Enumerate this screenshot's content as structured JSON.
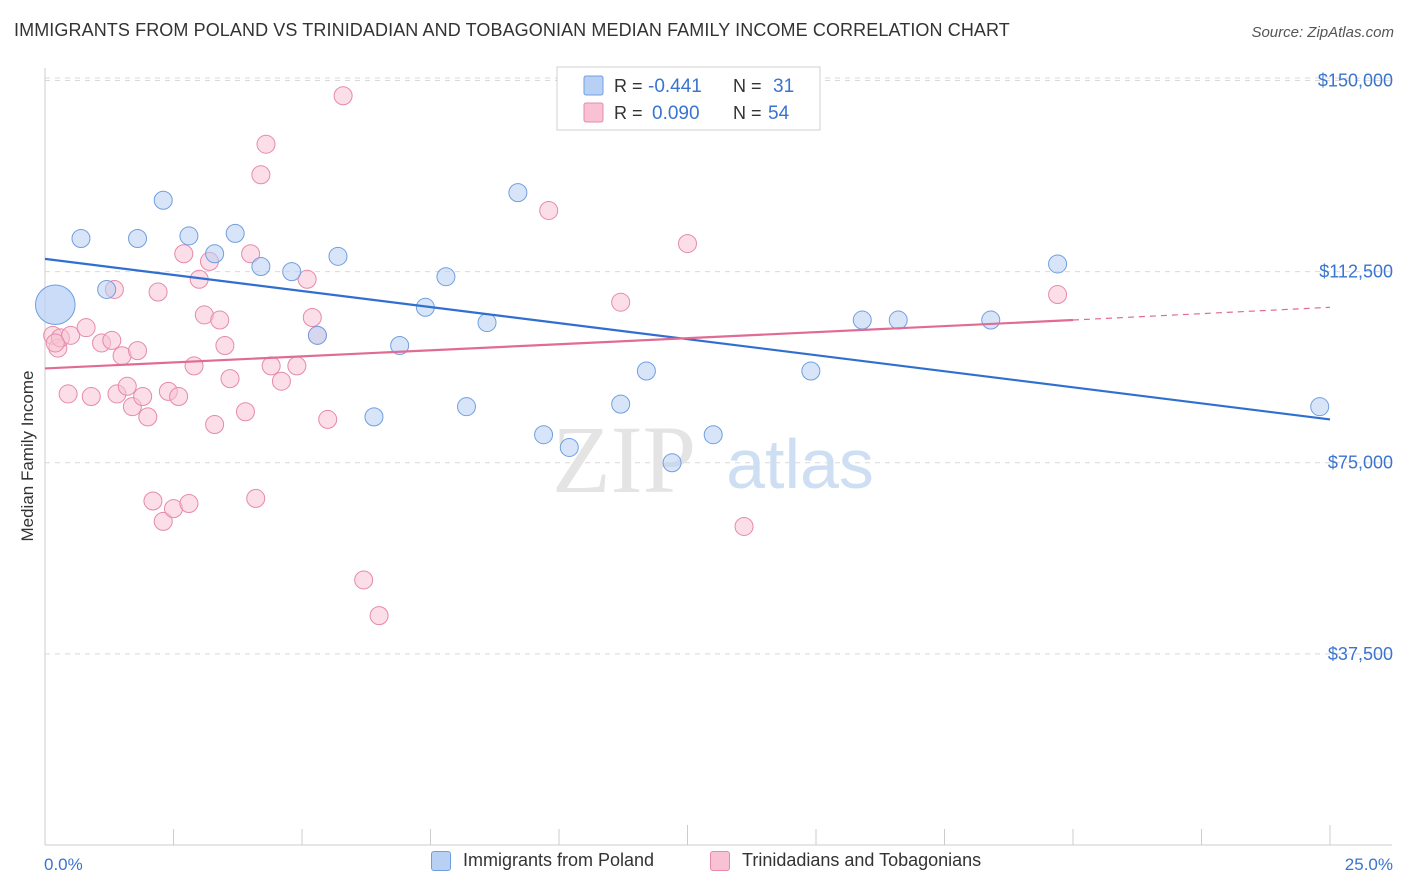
{
  "title": "IMMIGRANTS FROM POLAND VS TRINIDADIAN AND TOBAGONIAN MEDIAN FAMILY INCOME CORRELATION CHART",
  "source": "Source: ZipAtlas.com",
  "watermark": {
    "zip": "ZIP",
    "atlas": "atlas"
  },
  "legend_stats": [
    {
      "r_label": "R =",
      "r_value": "-0.441",
      "n_label": "N =",
      "n_value": "31"
    },
    {
      "r_label": "R =",
      "r_value": "0.090",
      "n_label": "N =",
      "n_value": "54"
    }
  ],
  "colors": {
    "blue_fill": "#b8d0f4",
    "blue_stroke": "#6f9fe0",
    "blue_line": "#2f6fcf",
    "pink_fill": "#f8c2d4",
    "pink_stroke": "#e68aaa",
    "pink_line": "#e06c94",
    "value_text": "#3a74d0",
    "grid": "#d9d9d9"
  },
  "chart_data": {
    "type": "scatter",
    "title": "IMMIGRANTS FROM POLAND VS TRINIDADIAN AND TOBAGONIAN MEDIAN FAMILY INCOME CORRELATION CHART",
    "xlabel": "",
    "ylabel": "Median Family Income",
    "xlim": [
      0,
      25
    ],
    "ylim": [
      0,
      155000
    ],
    "x_tick_labels": [
      "0.0%",
      "25.0%"
    ],
    "y_ticks": [
      37500,
      75000,
      112500,
      150000
    ],
    "y_tick_labels": [
      "$37,500",
      "$75,000",
      "$112,500",
      "$150,000"
    ],
    "grid": true,
    "legend_position": "top-center",
    "series": [
      {
        "name": "Immigrants from Poland",
        "r": -0.441,
        "n": 31,
        "trend": {
          "x0": 0,
          "y0": 115000,
          "x1": 25,
          "y1": 83500
        },
        "points": [
          [
            0.2,
            106000
          ],
          [
            0.7,
            119000
          ],
          [
            1.2,
            109000
          ],
          [
            1.8,
            119000
          ],
          [
            2.3,
            126500
          ],
          [
            2.8,
            119500
          ],
          [
            3.3,
            116000
          ],
          [
            3.7,
            120000
          ],
          [
            4.2,
            113500
          ],
          [
            4.8,
            112500
          ],
          [
            5.3,
            100000
          ],
          [
            5.7,
            115500
          ],
          [
            6.4,
            84000
          ],
          [
            6.9,
            98000
          ],
          [
            7.4,
            105500
          ],
          [
            7.8,
            111500
          ],
          [
            8.2,
            86000
          ],
          [
            8.6,
            102500
          ],
          [
            9.2,
            128000
          ],
          [
            9.7,
            80500
          ],
          [
            10.2,
            78000
          ],
          [
            11.2,
            86500
          ],
          [
            11.7,
            93000
          ],
          [
            12.2,
            75000
          ],
          [
            13.0,
            80500
          ],
          [
            14.9,
            93000
          ],
          [
            15.9,
            103000
          ],
          [
            16.6,
            103000
          ],
          [
            18.4,
            103000
          ],
          [
            19.7,
            114000
          ],
          [
            24.8,
            86000
          ]
        ],
        "point_sizes": [
          2.2,
          1,
          1,
          1,
          1,
          1,
          1,
          1,
          1,
          1,
          1,
          1,
          1,
          1,
          1,
          1,
          1,
          1,
          1,
          1,
          1,
          1,
          1,
          1,
          1,
          1,
          1,
          1,
          1,
          1,
          1
        ]
      },
      {
        "name": "Trinidadians and Tobagonians",
        "r": 0.09,
        "n": 54,
        "trend": {
          "x0": 0,
          "y0": 93500,
          "x1": 20,
          "y1": 103000
        },
        "trend_extension": {
          "x0": 20,
          "y0": 103000,
          "x1": 25,
          "y1": 105500
        },
        "points": [
          [
            0.15,
            100000
          ],
          [
            0.25,
            97500
          ],
          [
            0.3,
            99500
          ],
          [
            0.45,
            88500
          ],
          [
            0.5,
            100000
          ],
          [
            0.8,
            101500
          ],
          [
            0.9,
            88000
          ],
          [
            1.1,
            98500
          ],
          [
            1.3,
            99000
          ],
          [
            1.4,
            88500
          ],
          [
            1.5,
            96000
          ],
          [
            1.6,
            90000
          ],
          [
            1.7,
            86000
          ],
          [
            1.8,
            97000
          ],
          [
            1.9,
            88000
          ],
          [
            2.0,
            84000
          ],
          [
            2.1,
            67500
          ],
          [
            2.2,
            108500
          ],
          [
            2.3,
            63500
          ],
          [
            2.4,
            89000
          ],
          [
            2.5,
            66000
          ],
          [
            2.6,
            88000
          ],
          [
            2.7,
            116000
          ],
          [
            2.8,
            67000
          ],
          [
            2.9,
            94000
          ],
          [
            3.0,
            111000
          ],
          [
            3.1,
            104000
          ],
          [
            3.2,
            114500
          ],
          [
            3.3,
            82500
          ],
          [
            3.4,
            103000
          ],
          [
            3.5,
            98000
          ],
          [
            3.6,
            91500
          ],
          [
            3.9,
            85000
          ],
          [
            4.0,
            116000
          ],
          [
            4.1,
            68000
          ],
          [
            4.2,
            131500
          ],
          [
            4.3,
            137500
          ],
          [
            4.4,
            94000
          ],
          [
            4.6,
            91000
          ],
          [
            4.9,
            94000
          ],
          [
            5.1,
            111000
          ],
          [
            5.2,
            103500
          ],
          [
            5.3,
            100000
          ],
          [
            5.5,
            83500
          ],
          [
            5.8,
            147000
          ],
          [
            6.2,
            52000
          ],
          [
            6.5,
            45000
          ],
          [
            9.8,
            124500
          ],
          [
            11.2,
            106500
          ],
          [
            12.5,
            118000
          ],
          [
            13.6,
            62500
          ],
          [
            19.7,
            108000
          ],
          [
            0.2,
            98500
          ],
          [
            1.35,
            109000
          ]
        ]
      }
    ]
  },
  "legend_bottom": [
    {
      "label": "Immigrants from Poland"
    },
    {
      "label": "Trinidadians and Tobagonians"
    }
  ]
}
